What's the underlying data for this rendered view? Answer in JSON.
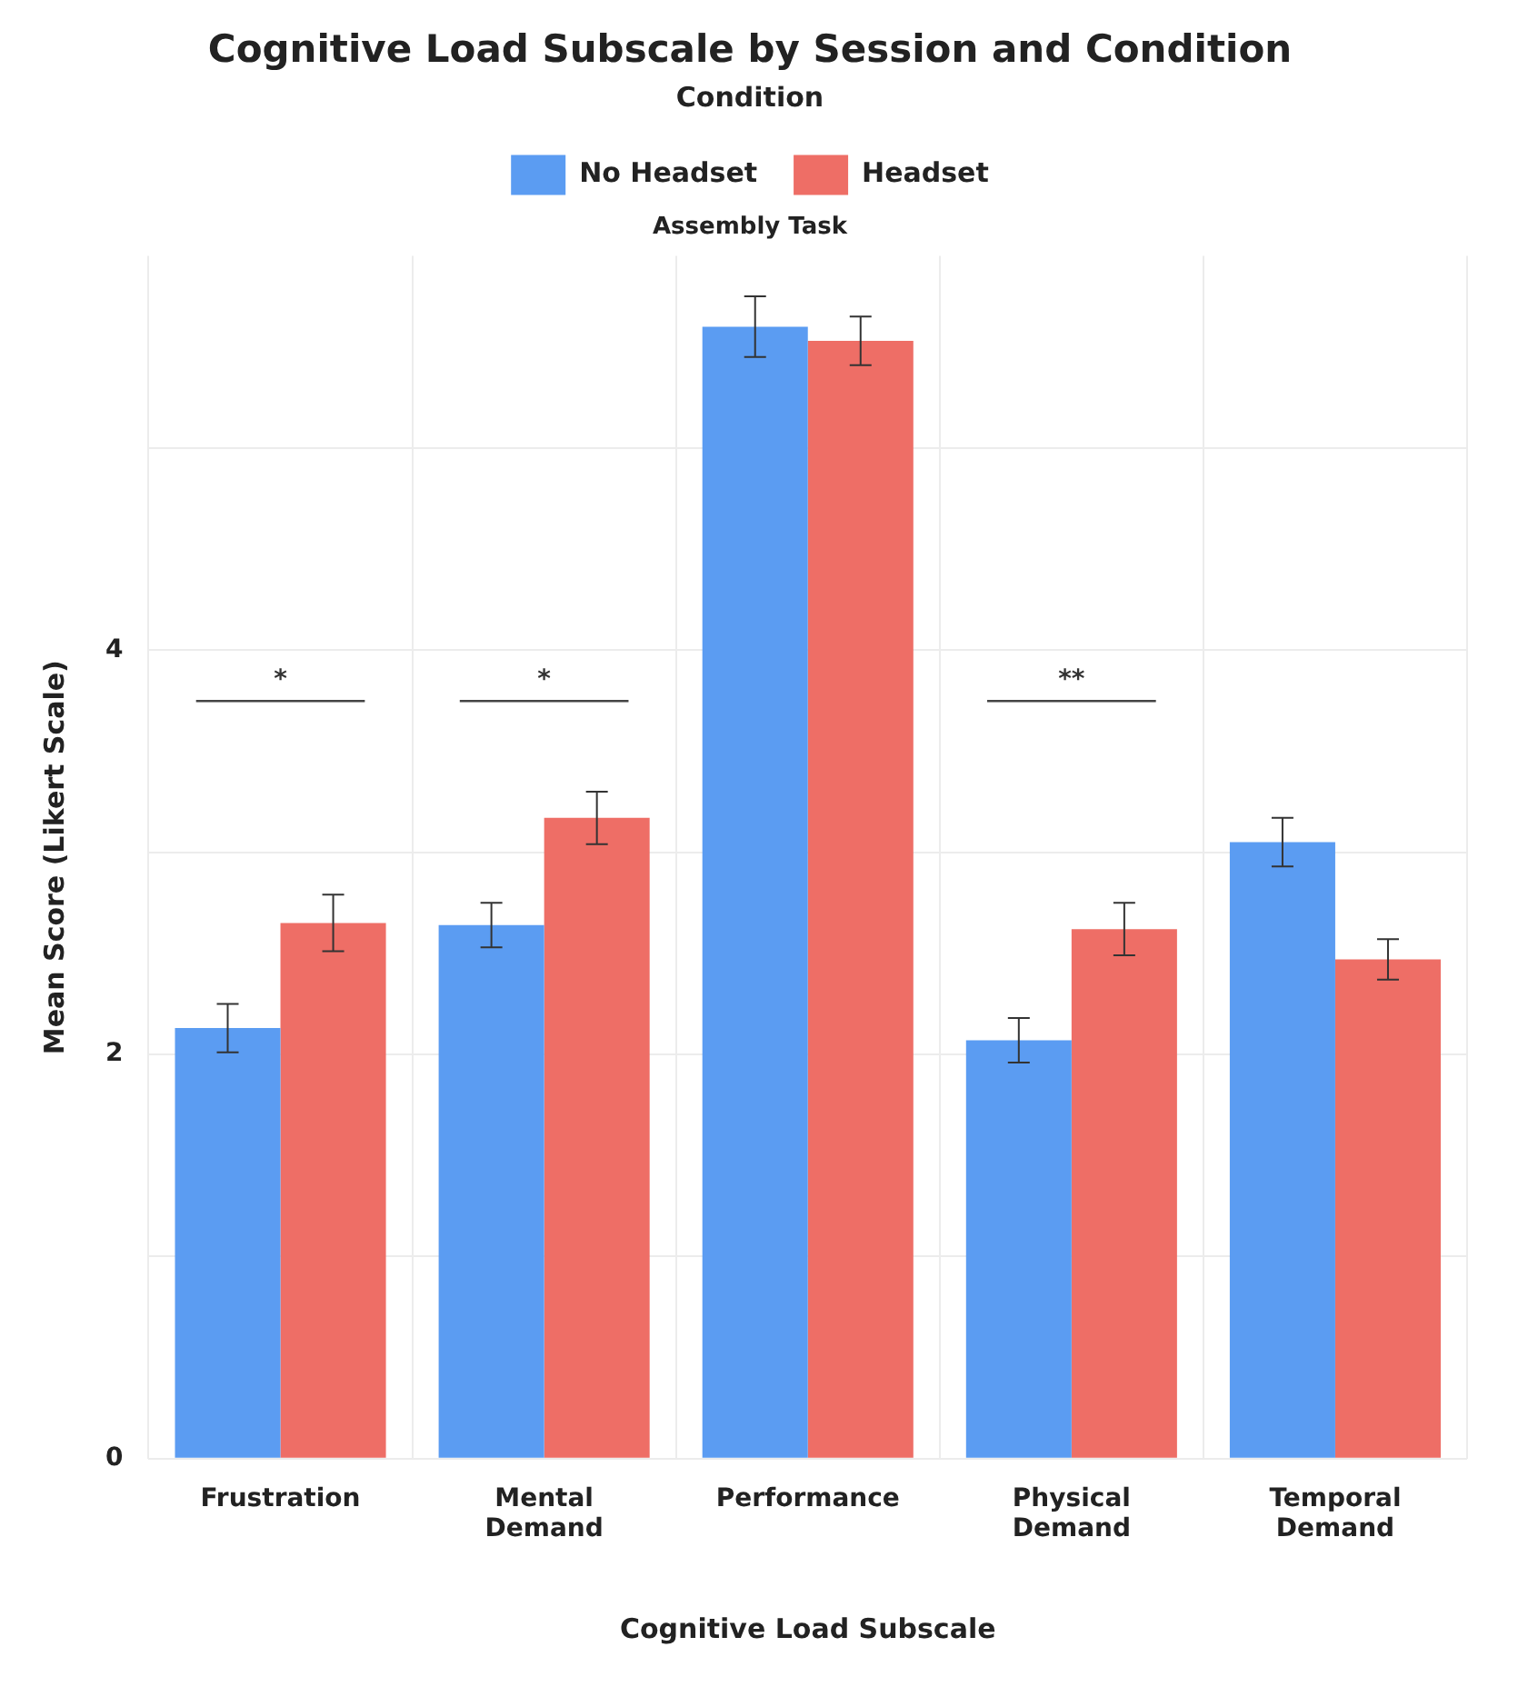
{
  "chart_data": {
    "type": "bar",
    "title": "Cognitive Load Subscale by Session and Condition",
    "subtitle": "Assembly Task",
    "xlabel": "Cognitive Load Subscale",
    "ylabel": "Mean Score (Likert Scale)",
    "legend_title": "Condition",
    "legend": "top",
    "categories": [
      "Frustration",
      "Mental Demand",
      "Performance",
      "Physical Demand",
      "Temporal Demand"
    ],
    "series": [
      {
        "name": "No Headset",
        "color": "#5b9cf2",
        "values": [
          2.13,
          2.64,
          5.6,
          2.07,
          3.05
        ],
        "errors": [
          0.12,
          0.11,
          0.15,
          0.11,
          0.12
        ]
      },
      {
        "name": "Headset",
        "color": "#ee6e66",
        "values": [
          2.65,
          3.17,
          5.53,
          2.62,
          2.47
        ],
        "errors": [
          0.14,
          0.13,
          0.12,
          0.13,
          0.1
        ]
      }
    ],
    "ylim": [
      0,
      5.95
    ],
    "yticks": [
      0,
      {
        "value": 1,
        "label": null
      },
      2,
      {
        "value": 3,
        "label": null
      },
      4,
      {
        "value": 5,
        "label": null
      }
    ],
    "grid": true,
    "annotations": [
      "*",
      "*",
      "**"
    ]
  }
}
